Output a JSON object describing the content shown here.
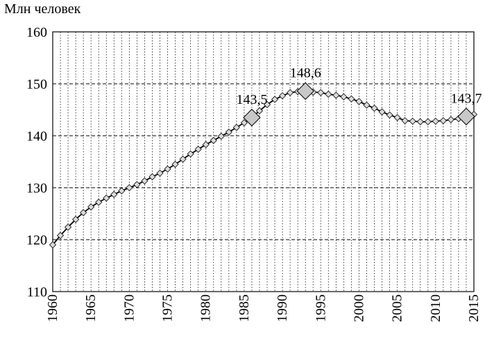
{
  "chart_data": {
    "type": "line",
    "ylabel": "Млн человек",
    "xlabel": "",
    "title": "",
    "xlim": [
      1960,
      2015
    ],
    "ylim": [
      110,
      160
    ],
    "yticks": [
      "110",
      "120",
      "130",
      "140",
      "150",
      "160"
    ],
    "xticks": [
      "1960",
      "1965",
      "1970",
      "1975",
      "1980",
      "1985",
      "1990",
      "1995",
      "2000",
      "2005",
      "2010",
      "2015"
    ],
    "grid": {
      "horizontal": "dashed",
      "vertical": "dotted-yearly"
    },
    "marker": "diamond",
    "colors": {
      "line": "#000000",
      "marker_fill": "#d9d9d9",
      "highlight_fill": "#c8c8c8"
    },
    "x": [
      1960,
      1961,
      1962,
      1963,
      1964,
      1965,
      1966,
      1967,
      1968,
      1969,
      1970,
      1971,
      1972,
      1973,
      1974,
      1975,
      1976,
      1977,
      1978,
      1979,
      1980,
      1981,
      1982,
      1983,
      1984,
      1985,
      1986,
      1987,
      1988,
      1989,
      1990,
      1991,
      1992,
      1993,
      1994,
      1995,
      1996,
      1997,
      1998,
      1999,
      2000,
      2001,
      2002,
      2003,
      2004,
      2005,
      2006,
      2007,
      2008,
      2009,
      2010,
      2011,
      2012,
      2013,
      2014,
      2015
    ],
    "values": [
      119.0,
      120.8,
      122.4,
      123.9,
      125.2,
      126.3,
      127.2,
      128.0,
      128.7,
      129.4,
      130.0,
      130.6,
      131.3,
      132.1,
      132.8,
      133.6,
      134.5,
      135.5,
      136.5,
      137.4,
      138.3,
      139.1,
      139.9,
      140.7,
      141.6,
      142.5,
      143.5,
      144.8,
      146.0,
      147.0,
      147.7,
      148.3,
      148.5,
      148.6,
      148.4,
      148.3,
      148.0,
      147.8,
      147.5,
      147.1,
      146.6,
      145.9,
      145.3,
      144.6,
      144.0,
      143.5,
      142.9,
      142.8,
      142.7,
      142.7,
      142.8,
      142.9,
      143.1,
      143.3,
      143.7,
      144.1
    ],
    "annotations": [
      {
        "x": 1986,
        "y": 143.5,
        "label": "143,5"
      },
      {
        "x": 1993,
        "y": 148.6,
        "label": "148,6"
      },
      {
        "x": 2014,
        "y": 143.7,
        "label": "143,7"
      }
    ]
  }
}
